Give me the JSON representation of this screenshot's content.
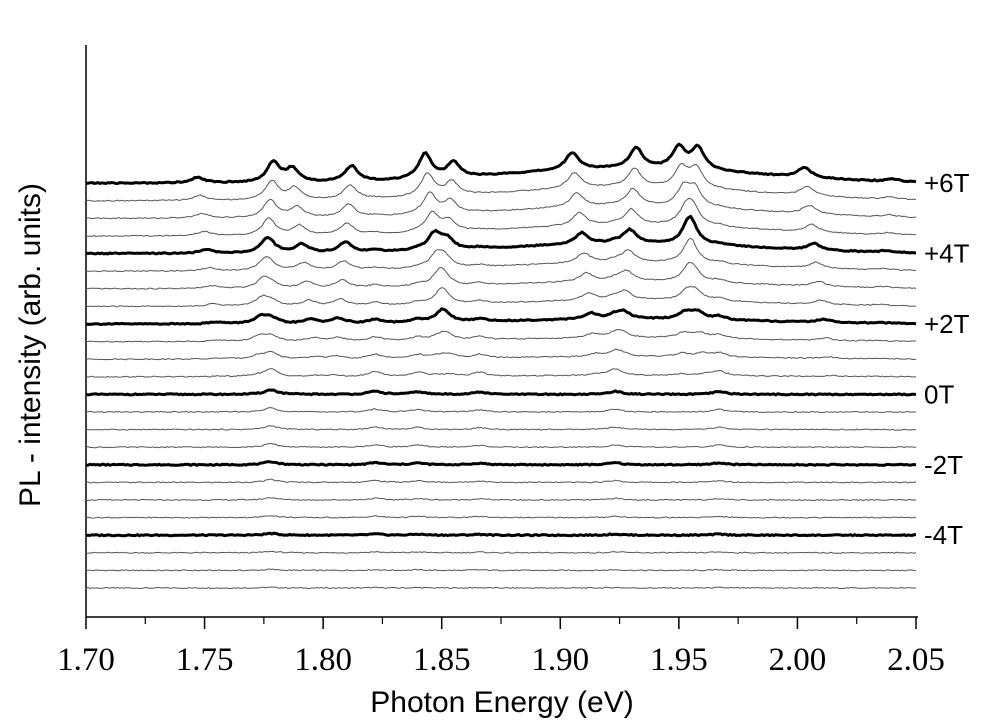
{
  "chart_data": {
    "type": "line",
    "title": "",
    "xlabel": "Photon Energy (eV)",
    "ylabel": "PL - intensity (arb. units)",
    "xlim": [
      1.7,
      2.05
    ],
    "x_ticks": [
      1.7,
      1.75,
      1.8,
      1.85,
      1.9,
      1.95,
      2.0,
      2.05
    ],
    "x_tick_labels": [
      "1.70",
      "1.75",
      "1.80",
      "1.85",
      "1.90",
      "1.95",
      "2.00",
      "2.05"
    ],
    "grid": false,
    "legend": "none",
    "field_step_T": 0.5,
    "series_labels": [
      {
        "field_T": 6,
        "text": "+6T"
      },
      {
        "field_T": 4,
        "text": "+4T"
      },
      {
        "field_T": 2,
        "text": "+2T"
      },
      {
        "field_T": 0,
        "text": "0T"
      },
      {
        "field_T": -2,
        "text": "-2T"
      },
      {
        "field_T": -4,
        "text": "-4T"
      }
    ],
    "fields_T": [
      -5.5,
      -5,
      -4.5,
      -4,
      -3.5,
      -3,
      -2.5,
      -2,
      -1.5,
      -1,
      -0.5,
      0,
      0.5,
      1,
      1.5,
      2,
      2.5,
      3,
      3.5,
      4,
      4.5,
      5,
      5.5,
      6
    ],
    "highlighted_fields_T": [
      -4,
      -2,
      0,
      2,
      4,
      6
    ],
    "peaks_at_0T": [
      {
        "energy_eV": 1.778,
        "intensity": 0.9
      },
      {
        "energy_eV": 1.822,
        "intensity": 0.6
      },
      {
        "energy_eV": 1.84,
        "intensity": 0.5
      },
      {
        "energy_eV": 1.866,
        "intensity": 0.45
      },
      {
        "energy_eV": 1.923,
        "intensity": 0.6
      },
      {
        "energy_eV": 1.967,
        "intensity": 0.55
      }
    ],
    "peaks_at_6T": [
      {
        "energy_eV": 1.747,
        "intensity": 1.1
      },
      {
        "energy_eV": 1.779,
        "intensity": 4.0
      },
      {
        "energy_eV": 1.787,
        "intensity": 2.6
      },
      {
        "energy_eV": 1.812,
        "intensity": 3.1
      },
      {
        "energy_eV": 1.843,
        "intensity": 5.0
      },
      {
        "energy_eV": 1.855,
        "intensity": 3.0
      },
      {
        "energy_eV": 1.905,
        "intensity": 3.4
      },
      {
        "energy_eV": 1.932,
        "intensity": 4.0
      },
      {
        "energy_eV": 1.95,
        "intensity": 4.3
      },
      {
        "energy_eV": 1.958,
        "intensity": 4.3
      },
      {
        "energy_eV": 2.003,
        "intensity": 2.0
      },
      {
        "energy_eV": 2.04,
        "intensity": 0.5
      }
    ]
  }
}
